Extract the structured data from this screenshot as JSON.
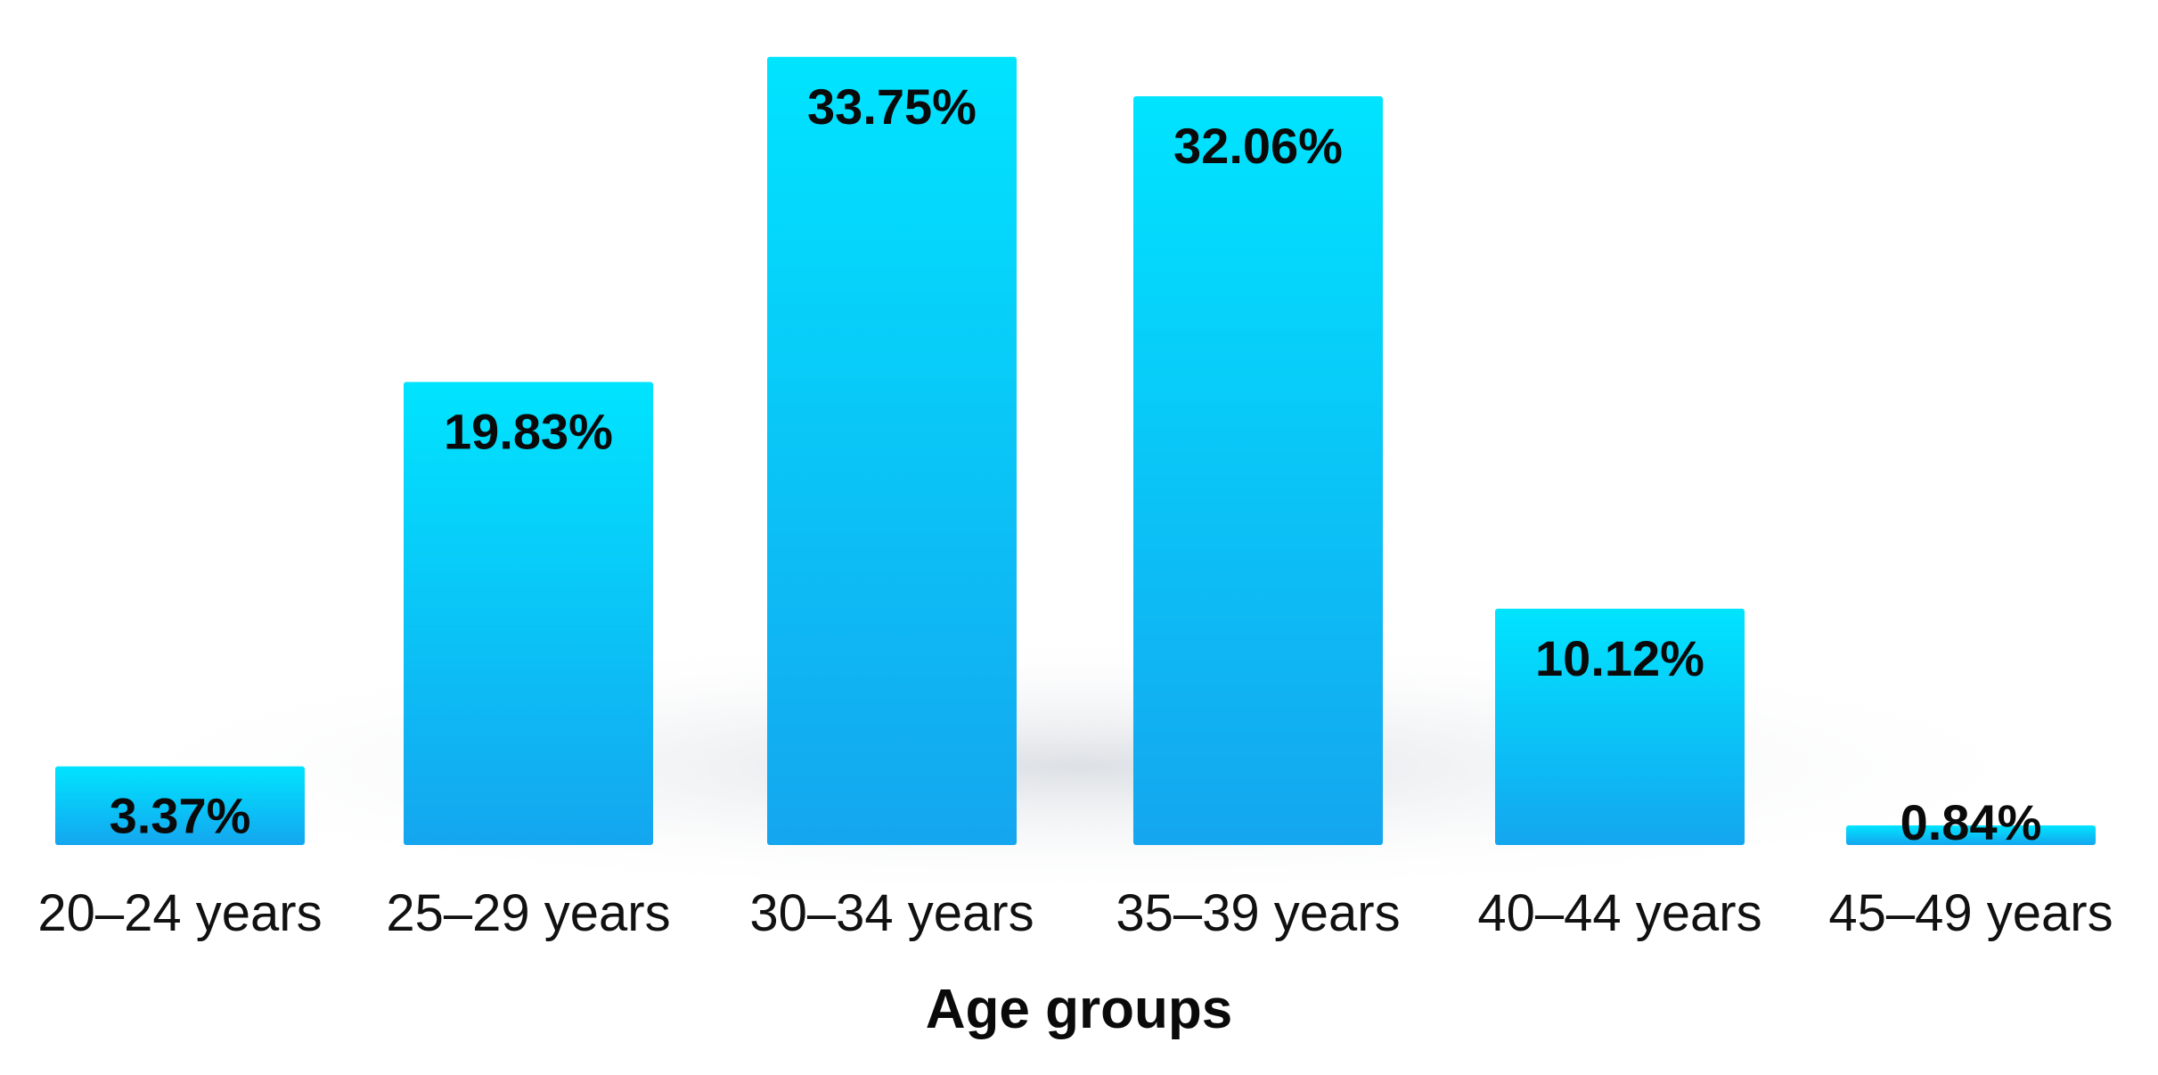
{
  "chart_data": {
    "type": "bar",
    "categories": [
      "20–24 years",
      "25–29 years",
      "30–34 years",
      "35–39 years",
      "40–44 years",
      "45–49 years"
    ],
    "values": [
      3.37,
      19.83,
      33.75,
      32.06,
      10.12,
      0.84
    ],
    "value_labels": [
      "3.37%",
      "19.83%",
      "33.75%",
      "32.06%",
      "10.12%",
      "0.84%"
    ],
    "title": "",
    "xlabel": "Age groups",
    "ylabel": "",
    "ylim": [
      0,
      35
    ],
    "grid": false,
    "legend": "none",
    "bar_color_top": "#00e4ff",
    "bar_color_bottom": "#14a6ef"
  }
}
